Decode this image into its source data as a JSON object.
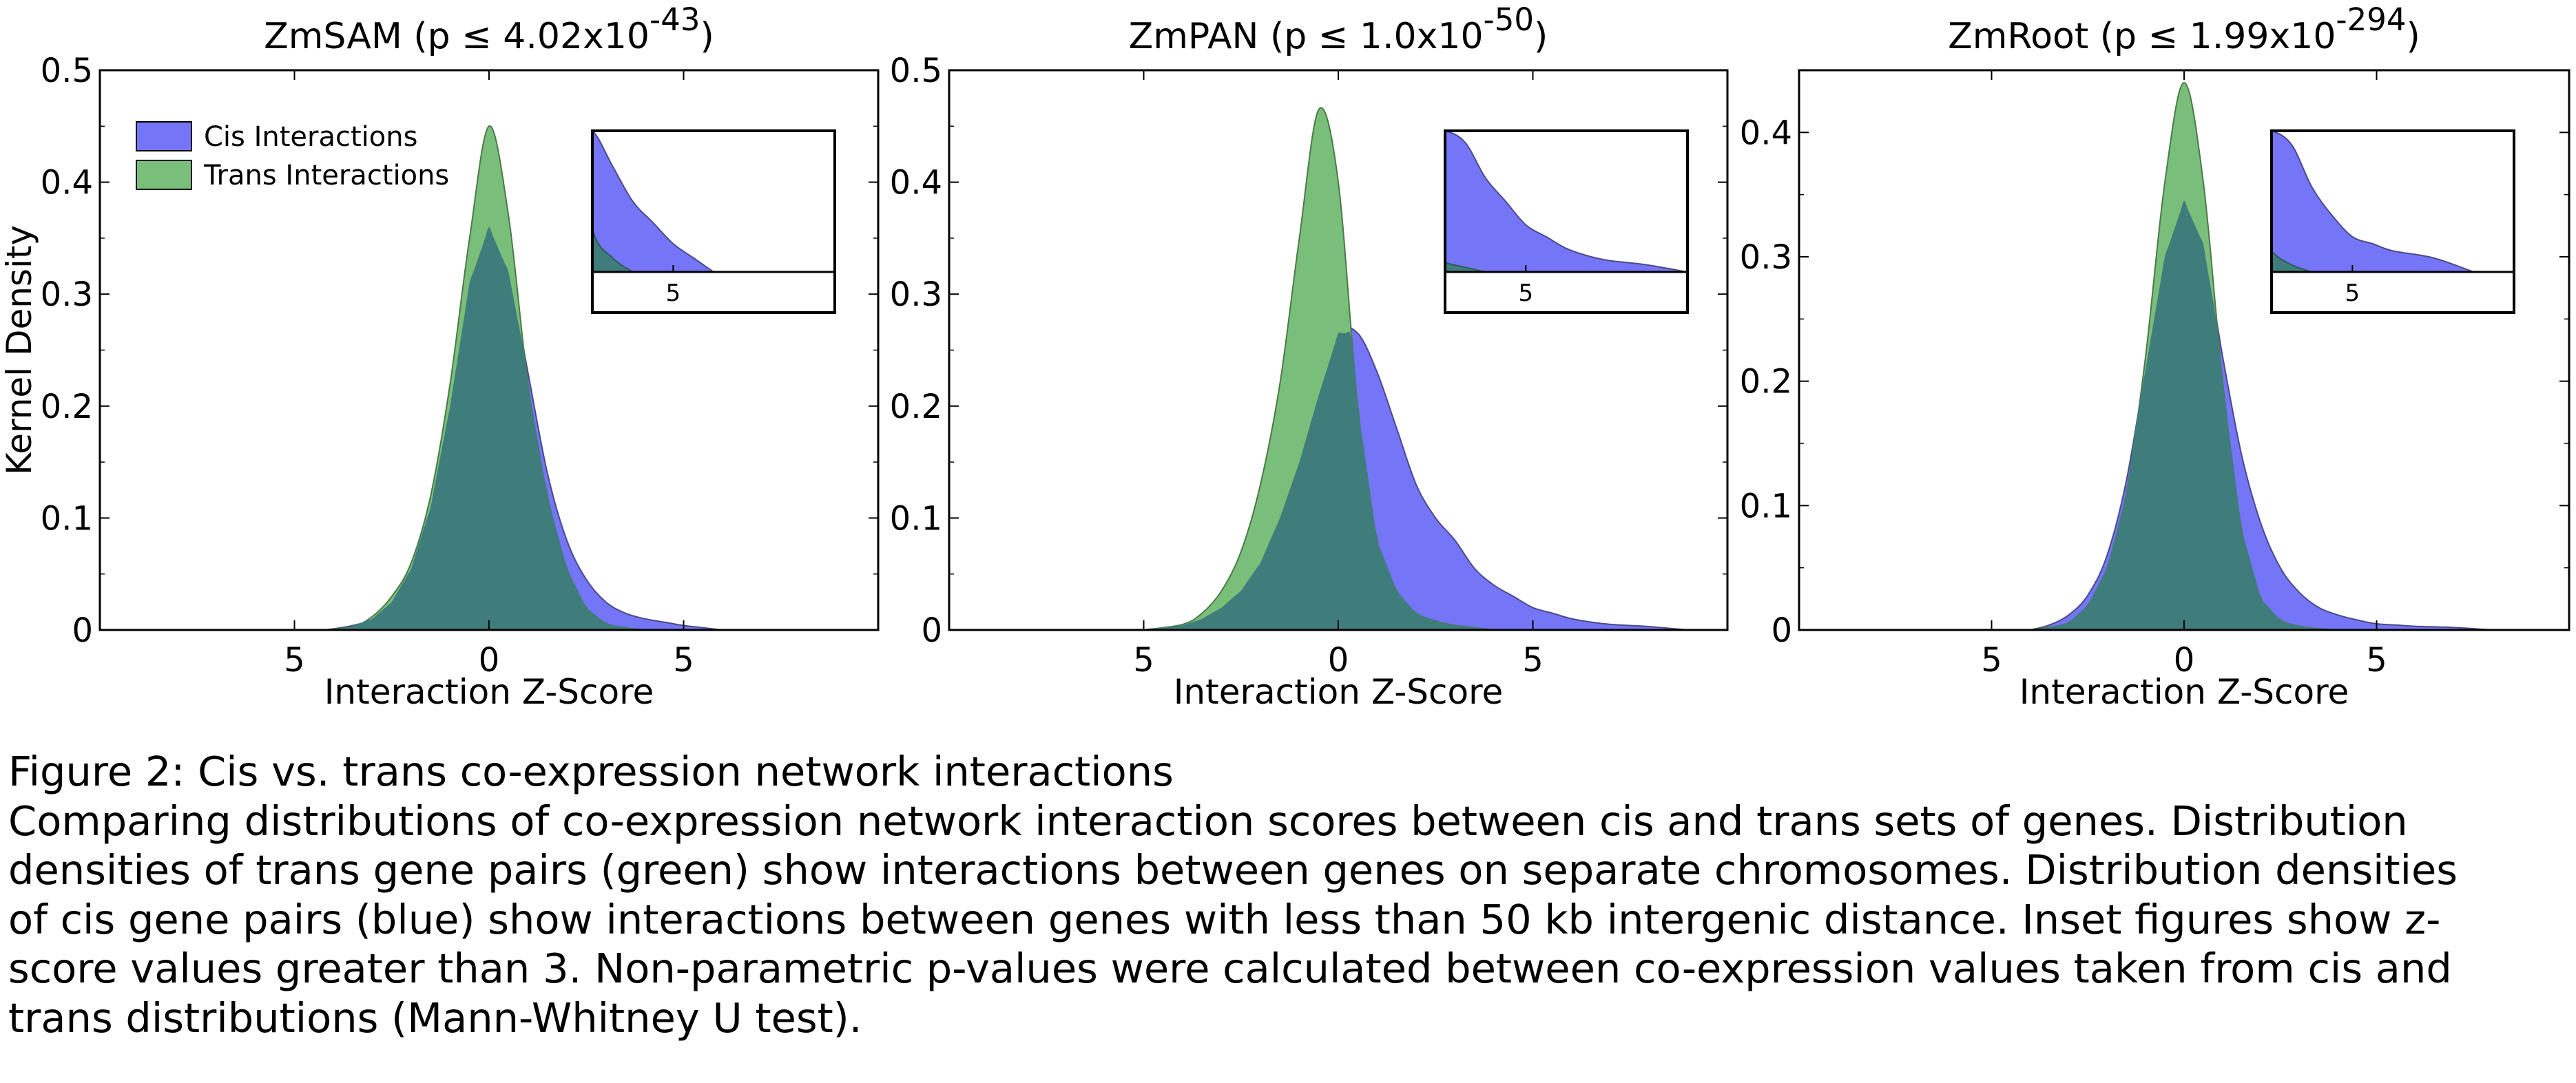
{
  "figure": {
    "panels": [
      {
        "name_html": "ZmSAM (p ≤ 4.02x10<tspan baseline-shift=\"super\" font-size=\"45\">-43</tspan>)",
        "title": "ZmSAM (p ≤ 4.02x10-43)"
      },
      {
        "name_html": "ZmPAN (p ≤ 1.0x10<tspan baseline-shift=\"super\" font-size=\"45\">-50</tspan>)",
        "title": "ZmPAN (p ≤ 1.0x10-50)"
      },
      {
        "name_html": "ZmRoot (p ≤ 1.99x10<tspan baseline-shift=\"super\" font-size=\"45\">-294</tspan>)",
        "title": "ZmRoot (p ≤ 1.99x10-294)"
      }
    ],
    "ylabel": "Kernel Density",
    "xlabel": "Interaction Z-Score",
    "legend": {
      "cis": "Cis Interactions",
      "trans": "Trans Interactions"
    },
    "colors": {
      "cis": "#7575f8",
      "trans": "#79bf79",
      "overlap": "#3f7d7c",
      "frame": "#000000"
    }
  },
  "chart_data": [
    {
      "type": "area",
      "title": "ZmSAM (p ≤ 4.02x10-43)",
      "xlabel": "Interaction Z-Score",
      "ylabel": "Kernel Density",
      "xlim": [
        -10,
        10
      ],
      "ylim": [
        0,
        0.5
      ],
      "xticks": [
        -5,
        0,
        5
      ],
      "xtick_labels": [
        "5",
        "0",
        "5"
      ],
      "yticks": [
        0,
        0.1,
        0.2,
        0.3,
        0.4,
        0.5
      ],
      "ytick_labels": [
        "0",
        "0.1",
        "0.2",
        "0.3",
        "0.4",
        "0.5"
      ],
      "legend": "top-left",
      "inset": {
        "xlim": [
          3,
          9
        ],
        "ylim": [
          0,
          0.02
        ],
        "xticks": [
          5
        ],
        "xtick_labels": [
          "5"
        ]
      },
      "series": [
        {
          "name": "Cis Interactions",
          "x": [
            -4.2,
            -3.5,
            -3,
            -2.5,
            -2,
            -1.5,
            -1,
            -0.5,
            0,
            0.5,
            1,
            1.5,
            2,
            2.5,
            3,
            3.5,
            4,
            4.5,
            5,
            5.5,
            6
          ],
          "y": [
            0,
            0.004,
            0.01,
            0.025,
            0.055,
            0.11,
            0.2,
            0.31,
            0.36,
            0.32,
            0.23,
            0.14,
            0.08,
            0.045,
            0.025,
            0.015,
            0.01,
            0.007,
            0.004,
            0.002,
            0
          ]
        },
        {
          "name": "Trans Interactions",
          "x": [
            -4.2,
            -3.5,
            -3,
            -2.5,
            -2,
            -1.5,
            -1,
            -0.5,
            0,
            0.5,
            1,
            1.5,
            2,
            2.5,
            3,
            3.5,
            4
          ],
          "y": [
            0,
            0.003,
            0.012,
            0.03,
            0.06,
            0.12,
            0.22,
            0.35,
            0.45,
            0.37,
            0.22,
            0.12,
            0.055,
            0.02,
            0.006,
            0.002,
            0
          ]
        }
      ]
    },
    {
      "type": "area",
      "title": "ZmPAN (p ≤ 1.0x10-50)",
      "xlabel": "Interaction Z-Score",
      "ylabel": "",
      "xlim": [
        -10,
        10
      ],
      "ylim": [
        0,
        0.5
      ],
      "xticks": [
        -5,
        0,
        5
      ],
      "xtick_labels": [
        "5",
        "0",
        "5"
      ],
      "yticks": [
        0,
        0.1,
        0.2,
        0.3,
        0.4,
        0.5
      ],
      "ytick_labels": [
        "0",
        "0.1",
        "0.2",
        "0.3",
        "0.4",
        "0.5"
      ],
      "inset": {
        "xlim": [
          3,
          9
        ],
        "ylim": [
          0,
          0.06
        ],
        "xticks": [
          5
        ],
        "xtick_labels": [
          "5"
        ]
      },
      "series": [
        {
          "name": "Cis Interactions",
          "x": [
            -5,
            -4,
            -3.5,
            -3,
            -2.5,
            -2,
            -1.5,
            -1,
            -0.5,
            0,
            0.5,
            1,
            1.5,
            2,
            2.5,
            3,
            3.5,
            4,
            4.5,
            5,
            5.5,
            6,
            6.5,
            7,
            7.5,
            8,
            9
          ],
          "y": [
            0,
            0.004,
            0.01,
            0.02,
            0.035,
            0.06,
            0.1,
            0.15,
            0.21,
            0.265,
            0.265,
            0.23,
            0.18,
            0.13,
            0.1,
            0.08,
            0.055,
            0.04,
            0.03,
            0.02,
            0.015,
            0.01,
            0.007,
            0.005,
            0.004,
            0.003,
            0
          ]
        },
        {
          "name": "Trans Interactions",
          "x": [
            -5,
            -4,
            -3.5,
            -3,
            -2.5,
            -2,
            -1.5,
            -1,
            -0.5,
            0,
            0.5,
            1,
            1.5,
            2,
            2.5,
            3,
            3.5,
            4
          ],
          "y": [
            0,
            0.005,
            0.015,
            0.035,
            0.07,
            0.13,
            0.22,
            0.35,
            0.465,
            0.4,
            0.2,
            0.08,
            0.035,
            0.015,
            0.008,
            0.004,
            0.002,
            0
          ]
        }
      ]
    },
    {
      "type": "area",
      "title": "ZmRoot (p ≤ 1.99x10-294)",
      "xlabel": "Interaction Z-Score",
      "ylabel": "",
      "xlim": [
        -10,
        10
      ],
      "ylim": [
        0,
        0.45
      ],
      "xticks": [
        -5,
        0,
        5
      ],
      "xtick_labels": [
        "5",
        "0",
        "5"
      ],
      "yticks": [
        0,
        0.1,
        0.2,
        0.3,
        0.4
      ],
      "ytick_labels": [
        "0",
        "0.1",
        "0.2",
        "0.3",
        "0.4"
      ],
      "inset": {
        "xlim": [
          3,
          9
        ],
        "ylim": [
          0,
          0.02
        ],
        "xticks": [
          5
        ],
        "xtick_labels": [
          "5"
        ]
      },
      "series": [
        {
          "name": "Cis Interactions",
          "x": [
            -4,
            -3.5,
            -3,
            -2.5,
            -2,
            -1.5,
            -1,
            -0.5,
            0,
            0.5,
            1,
            1.5,
            2,
            2.5,
            3,
            3.5,
            4,
            4.5,
            5,
            5.5,
            6,
            7,
            8
          ],
          "y": [
            0,
            0.004,
            0.012,
            0.028,
            0.06,
            0.12,
            0.21,
            0.3,
            0.345,
            0.31,
            0.22,
            0.14,
            0.085,
            0.05,
            0.03,
            0.018,
            0.012,
            0.008,
            0.005,
            0.004,
            0.003,
            0.002,
            0
          ]
        },
        {
          "name": "Trans Interactions",
          "x": [
            -4,
            -3.5,
            -3,
            -2.5,
            -2,
            -1.5,
            -1,
            -0.5,
            0,
            0.5,
            1,
            1.5,
            2,
            2.5,
            3,
            3.5,
            4
          ],
          "y": [
            0,
            0.002,
            0.006,
            0.02,
            0.05,
            0.11,
            0.22,
            0.36,
            0.44,
            0.36,
            0.2,
            0.08,
            0.025,
            0.008,
            0.003,
            0.001,
            0
          ]
        }
      ]
    }
  ],
  "caption": {
    "title": "Figure 2: Cis vs. trans co-expression network interactions",
    "lines": [
      "Comparing distributions of co-expression network interaction scores between cis and trans sets of genes. Distribution",
      "densities of trans gene pairs (green) show interactions between genes on separate chromosomes. Distribution densities",
      "of cis gene pairs (blue) show interactions between genes with less than 50 kb intergenic distance. Inset figures show z-",
      "score values greater than 3. Non-parametric p-values were calculated between co-expression values taken from cis and",
      "trans distributions (Mann-Whitney U test)."
    ]
  }
}
